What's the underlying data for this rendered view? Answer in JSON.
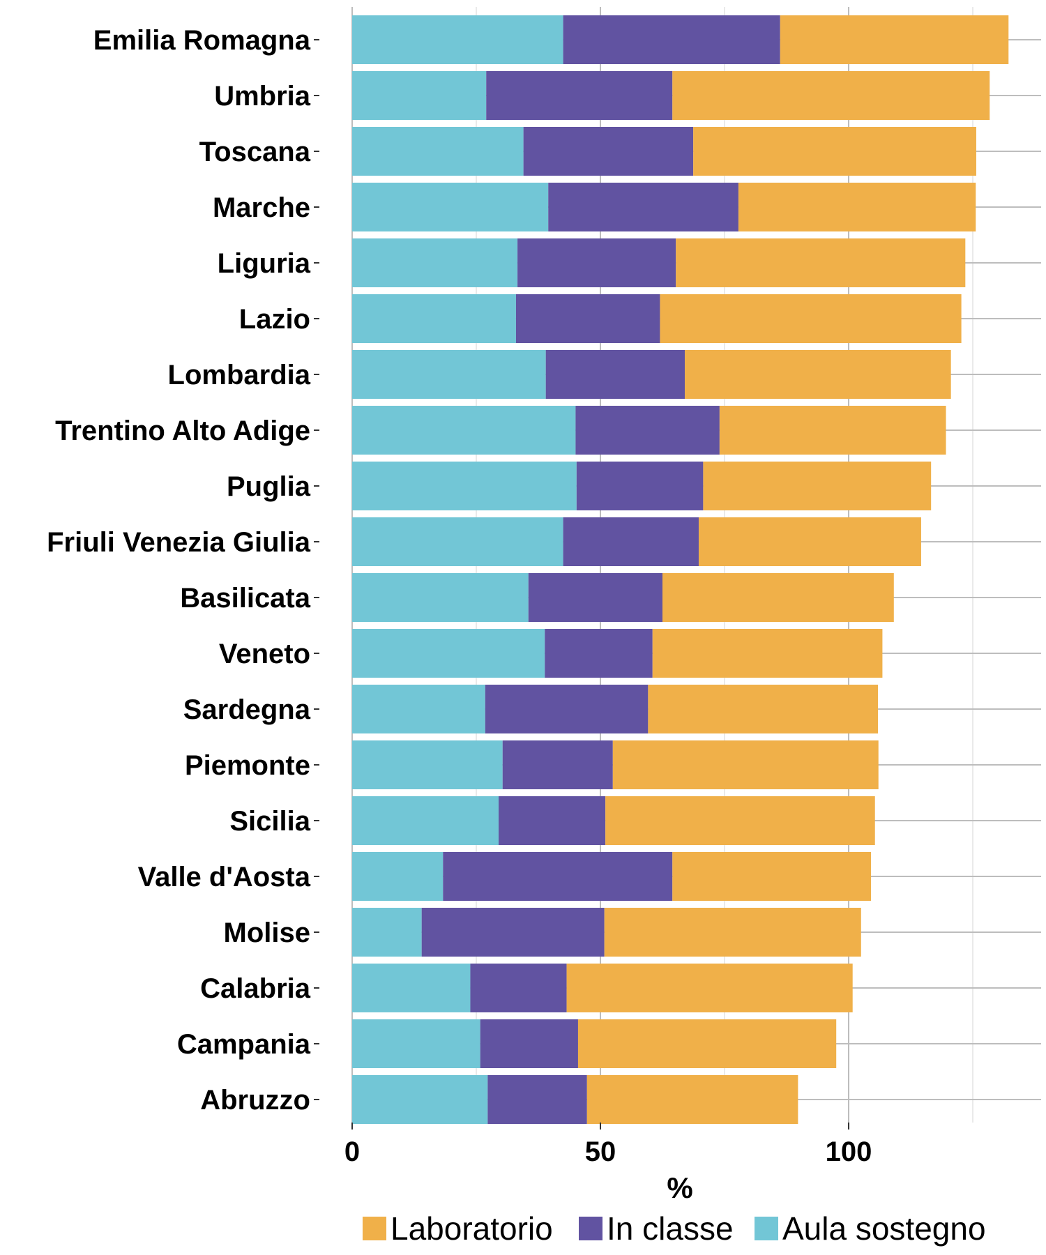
{
  "chart_data": {
    "type": "bar",
    "orientation": "horizontal",
    "stacked": true,
    "xlabel": "%",
    "ylabel": "",
    "xlim": [
      0,
      140
    ],
    "xticks": [
      0,
      50,
      100
    ],
    "grid": true,
    "legend_position": "bottom",
    "categories": [
      "Emilia Romagna",
      "Umbria",
      "Toscana",
      "Marche",
      "Liguria",
      "Lazio",
      "Lombardia",
      "Trentino Alto Adige",
      "Puglia",
      "Friuli Venezia Giulia",
      "Basilicata",
      "Veneto",
      "Sardegna",
      "Piemonte",
      "Sicilia",
      "Valle d'Aosta",
      "Molise",
      "Calabria",
      "Campania",
      "Abruzzo"
    ],
    "series": [
      {
        "name": "Aula sostegno",
        "color": "#72c6d6",
        "values": [
          42.5,
          27.0,
          34.5,
          39.5,
          33.3,
          33.0,
          39.0,
          45.0,
          45.2,
          42.5,
          35.5,
          38.8,
          26.8,
          30.3,
          29.5,
          18.3,
          14.0,
          23.8,
          25.8,
          27.3
        ]
      },
      {
        "name": "In classe",
        "color": "#6153a1",
        "values": [
          43.7,
          37.5,
          34.2,
          38.3,
          31.9,
          29.0,
          28.0,
          29.0,
          25.5,
          27.3,
          27.0,
          21.7,
          32.8,
          22.2,
          21.5,
          46.2,
          36.8,
          19.4,
          19.7,
          20.0
        ]
      },
      {
        "name": "Laboratorio",
        "color": "#f0b049",
        "values": [
          46.0,
          63.9,
          57.0,
          47.8,
          58.3,
          60.7,
          53.6,
          45.6,
          45.9,
          44.8,
          46.6,
          46.3,
          46.3,
          53.5,
          54.3,
          40.0,
          51.7,
          57.6,
          52.0,
          42.5
        ]
      }
    ],
    "legend_order": [
      "Laboratorio",
      "In classe",
      "Aula sostegno"
    ]
  }
}
